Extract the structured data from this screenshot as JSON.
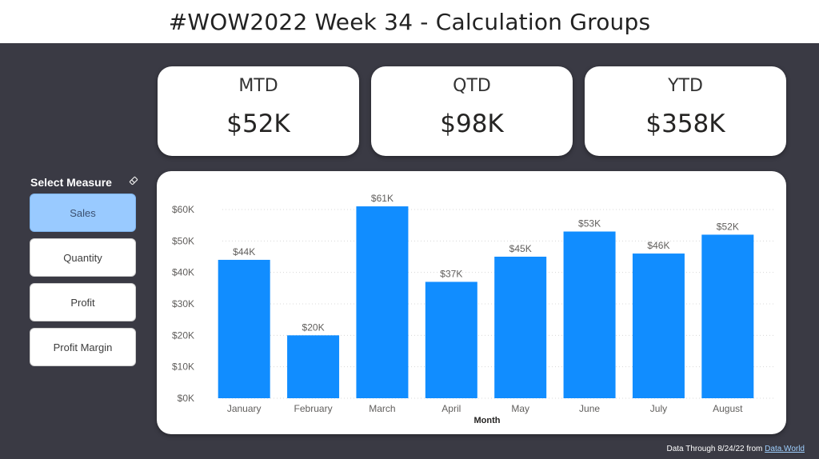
{
  "header": {
    "title": "#WOW2022 Week 34 - Calculation Groups"
  },
  "kpis": [
    {
      "label": "MTD",
      "value": "$52K"
    },
    {
      "label": "QTD",
      "value": "$98K"
    },
    {
      "label": "YTD",
      "value": "$358K"
    }
  ],
  "slicer": {
    "title": "Select Measure",
    "clear_icon": "eraser-icon",
    "options": [
      {
        "label": "Sales",
        "selected": true
      },
      {
        "label": "Quantity",
        "selected": false
      },
      {
        "label": "Profit",
        "selected": false
      },
      {
        "label": "Profit Margin",
        "selected": false
      }
    ]
  },
  "chart_data": {
    "type": "bar",
    "categories": [
      "January",
      "February",
      "March",
      "April",
      "May",
      "June",
      "July",
      "August"
    ],
    "values": [
      44,
      20,
      61,
      37,
      45,
      53,
      46,
      52
    ],
    "data_labels": [
      "$44K",
      "$20K",
      "$61K",
      "$37K",
      "$45K",
      "$53K",
      "$46K",
      "$52K"
    ],
    "y_ticks": [
      "$0K",
      "$10K",
      "$20K",
      "$30K",
      "$40K",
      "$50K",
      "$60K"
    ],
    "ylim": [
      0,
      60
    ],
    "xlabel": "Month",
    "ylabel": "",
    "grid": true,
    "bar_color": "#118dff"
  },
  "footer": {
    "text": "Data Through 8/24/22 from ",
    "link_text": "Data.World"
  }
}
